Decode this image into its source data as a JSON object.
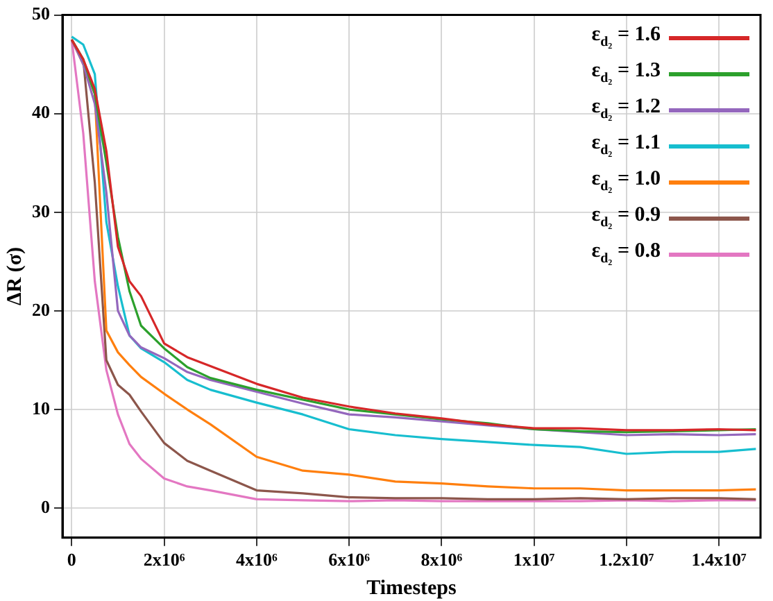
{
  "chart_data": {
    "type": "line",
    "xlabel": "Timesteps",
    "ylabel": "ΔR (σ)",
    "x": [
      0,
      250000,
      500000,
      750000,
      1000000,
      1250000,
      1500000,
      2000000,
      2500000,
      3000000,
      4000000,
      5000000,
      6000000,
      7000000,
      8000000,
      9000000,
      10000000,
      11000000,
      12000000,
      13000000,
      14000000,
      14800000
    ],
    "series": [
      {
        "name": "ε$_{d₂}$ = 1.6",
        "color": "#d62728",
        "values": [
          47.5,
          45.5,
          42.5,
          36.2,
          26.5,
          23,
          21.5,
          16.7,
          15.3,
          14.4,
          12.6,
          11.2,
          10.3,
          9.6,
          9.1,
          8.5,
          8.1,
          8.1,
          7.9,
          7.9,
          8.0,
          7.9
        ]
      },
      {
        "name": "ε$_{d₂}$ = 1.3",
        "color": "#2ca02c",
        "values": [
          47.5,
          45.5,
          42,
          35,
          27.5,
          22,
          18.5,
          16.2,
          14.3,
          13.2,
          12.0,
          11.0,
          10.0,
          9.5,
          9.0,
          8.6,
          8.0,
          7.8,
          7.7,
          7.8,
          7.9,
          8.0
        ]
      },
      {
        "name": "ε$_{d₂}$ = 1.2",
        "color": "#9467bd",
        "values": [
          47.5,
          45,
          41,
          32,
          20,
          17.5,
          16.3,
          15.2,
          13.8,
          13.0,
          11.8,
          10.6,
          9.5,
          9.2,
          8.8,
          8.4,
          8.0,
          7.7,
          7.4,
          7.5,
          7.4,
          7.5
        ]
      },
      {
        "name": "ε$_{d₂}$ = 1.1",
        "color": "#17becf",
        "values": [
          47.8,
          47,
          44,
          29,
          22.5,
          17.5,
          16.2,
          14.8,
          13,
          12,
          10.7,
          9.5,
          8.0,
          7.4,
          7.0,
          6.7,
          6.4,
          6.2,
          5.5,
          5.7,
          5.7,
          6.0
        ]
      },
      {
        "name": "ε$_{d₂}$ = 1.0",
        "color": "#ff7f0e",
        "values": [
          47.5,
          45,
          42,
          18,
          15.8,
          14.5,
          13.3,
          11.6,
          10,
          8.5,
          5.2,
          3.8,
          3.4,
          2.7,
          2.5,
          2.2,
          2.0,
          2.0,
          1.8,
          1.8,
          1.8,
          1.9
        ]
      },
      {
        "name": "ε$_{d₂}$ = 0.9",
        "color": "#8c564b",
        "values": [
          47.5,
          45.5,
          33,
          15,
          12.5,
          11.5,
          9.8,
          6.6,
          4.8,
          3.8,
          1.8,
          1.5,
          1.1,
          1.0,
          1.0,
          0.9,
          0.9,
          1.0,
          0.9,
          1.0,
          1.0,
          0.9
        ]
      },
      {
        "name": "ε$_{d₂}$ = 0.8",
        "color": "#e377c2",
        "values": [
          47.5,
          38,
          23,
          14,
          9.5,
          6.5,
          5.0,
          3.0,
          2.2,
          1.8,
          0.9,
          0.8,
          0.7,
          0.8,
          0.7,
          0.7,
          0.7,
          0.7,
          0.8,
          0.7,
          0.8,
          0.8
        ]
      }
    ],
    "xlim": [
      -200000,
      14900000
    ],
    "xticks": [
      0,
      {
        "value": 2000000,
        "label": "2x10⁶"
      },
      {
        "value": 4000000,
        "label": "4x10⁶"
      },
      {
        "value": 6000000,
        "label": "6x10⁶"
      },
      {
        "value": 8000000,
        "label": "8x10⁶"
      },
      {
        "value": 10000000,
        "label": "1x10⁷"
      },
      {
        "value": 12000000,
        "label": "1.2x10⁷"
      },
      {
        "value": 14000000,
        "label": "1.4x10⁷"
      }
    ],
    "ylim": [
      -3,
      50
    ],
    "yticks": [
      0,
      10,
      20,
      30,
      40,
      50
    ],
    "grid": true,
    "legend": "top right",
    "marker": "none",
    "line_style": "solid"
  }
}
